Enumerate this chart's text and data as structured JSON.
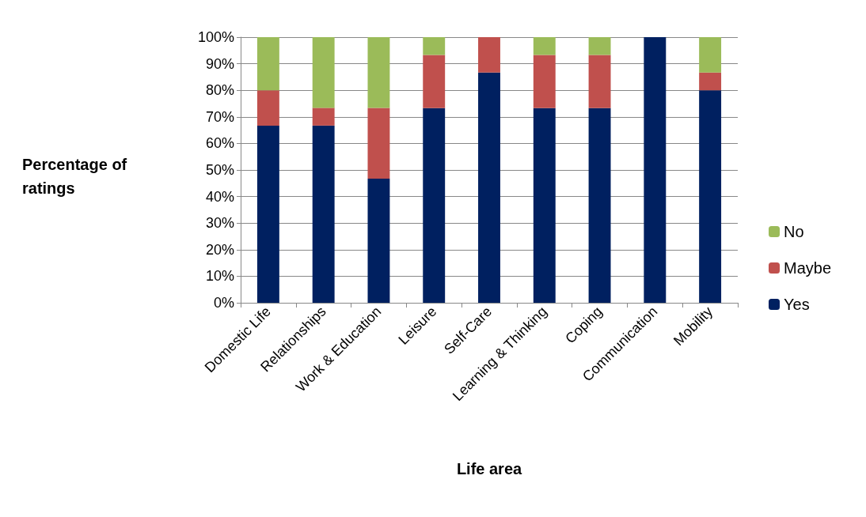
{
  "chart_data": {
    "type": "bar",
    "stacked": true,
    "xlabel": "Life area",
    "ylabel": "Percentage of ratings",
    "categories": [
      "Domestic Life",
      "Relationships",
      "Work & Education",
      "Leisure",
      "Self-Care",
      "Learning & Thinking",
      "Coping",
      "Communication",
      "Mobility"
    ],
    "series": [
      {
        "name": "Yes",
        "color": "#002060",
        "values": [
          66.7,
          66.7,
          46.7,
          73.3,
          86.7,
          73.3,
          73.3,
          100,
          80
        ]
      },
      {
        "name": "Maybe",
        "color": "#c0504d",
        "values": [
          13.3,
          6.7,
          26.7,
          20,
          13.3,
          20,
          20,
          0,
          6.7
        ]
      },
      {
        "name": "No",
        "color": "#9bbb59",
        "values": [
          20,
          26.7,
          26.7,
          6.7,
          0,
          6.7,
          6.7,
          0,
          13.3
        ]
      }
    ],
    "ylim": [
      0,
      100
    ],
    "yticks": [
      {
        "value": 0,
        "label": "0%"
      },
      {
        "value": 10,
        "label": "10%"
      },
      {
        "value": 20,
        "label": "20%"
      },
      {
        "value": 30,
        "label": "30%"
      },
      {
        "value": 40,
        "label": "40%"
      },
      {
        "value": 50,
        "label": "50%"
      },
      {
        "value": 60,
        "label": "60%"
      },
      {
        "value": 70,
        "label": "70%"
      },
      {
        "value": 80,
        "label": "80%"
      },
      {
        "value": 90,
        "label": "90%"
      },
      {
        "value": 100,
        "label": "100%"
      }
    ],
    "grid": "y",
    "legend": "right"
  }
}
